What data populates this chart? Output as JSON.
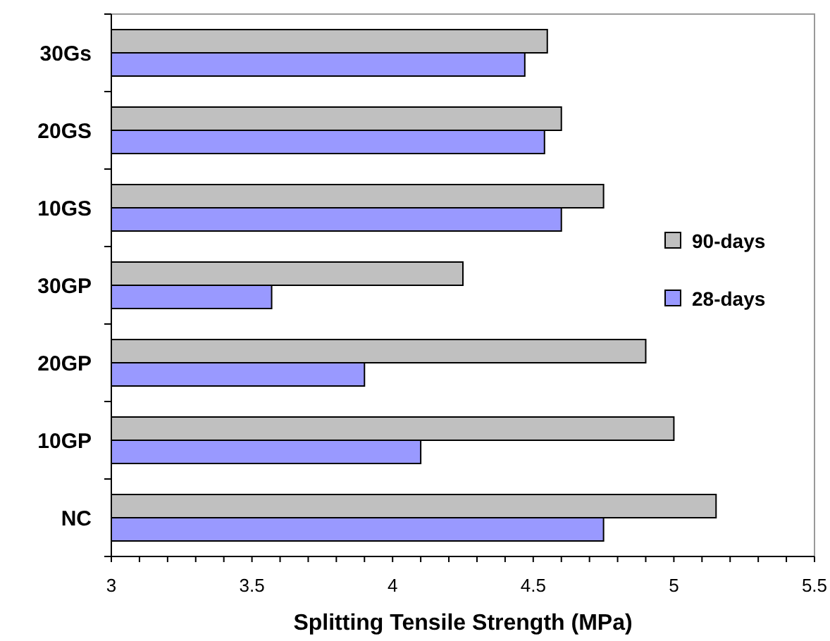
{
  "chart_data": {
    "type": "bar",
    "orientation": "horizontal",
    "xlabel": "Splitting Tensile Strength (MPa)",
    "categories": [
      "30Gs",
      "20GS",
      "10GS",
      "30GP",
      "20GP",
      "10GP",
      "NC"
    ],
    "series": [
      {
        "name": "90-days",
        "color": "#c0c0c0",
        "values": [
          4.55,
          4.6,
          4.75,
          4.25,
          4.9,
          5.0,
          5.15
        ]
      },
      {
        "name": "28-days",
        "color": "#9999ff",
        "values": [
          4.47,
          4.54,
          4.6,
          3.57,
          3.9,
          4.1,
          4.75
        ]
      }
    ],
    "xlim": [
      3,
      5.5
    ],
    "xticks": [
      3,
      {
        "value": 3.1,
        "label": null
      },
      {
        "value": 3.2,
        "label": null
      },
      {
        "value": 3.3,
        "label": null
      },
      {
        "value": 3.4,
        "label": null
      },
      3.5,
      {
        "value": 3.6,
        "label": null
      },
      {
        "value": 3.7,
        "label": null
      },
      {
        "value": 3.8,
        "label": null
      },
      {
        "value": 3.9,
        "label": null
      },
      4,
      {
        "value": 4.1,
        "label": null
      },
      {
        "value": 4.2,
        "label": null
      },
      {
        "value": 4.3,
        "label": null
      },
      {
        "value": 4.4,
        "label": null
      },
      4.5,
      {
        "value": 4.6,
        "label": null
      },
      {
        "value": 4.7,
        "label": null
      },
      {
        "value": 4.8,
        "label": null
      },
      {
        "value": 4.9,
        "label": null
      },
      5,
      {
        "value": 5.1,
        "label": null
      },
      {
        "value": 5.2,
        "label": null
      },
      {
        "value": 5.3,
        "label": null
      },
      {
        "value": 5.4,
        "label": null
      },
      5.5
    ],
    "grid": false,
    "legend": "right"
  }
}
